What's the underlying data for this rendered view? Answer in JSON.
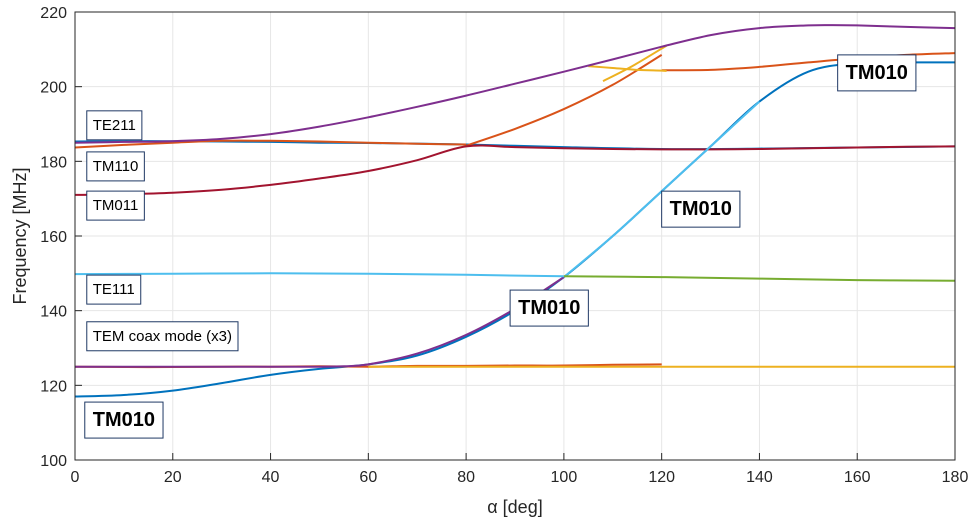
{
  "chart_data": {
    "type": "line",
    "xlabel": "α [deg]",
    "ylabel": "Frequency [MHz]",
    "xlim": [
      0,
      180
    ],
    "ylim": [
      100,
      220
    ],
    "xticks": [
      0,
      20,
      40,
      60,
      80,
      100,
      120,
      140,
      160,
      180
    ],
    "yticks": [
      100,
      120,
      140,
      160,
      180,
      200,
      220
    ],
    "grid": true,
    "series": [
      {
        "color": "#0072BD",
        "x": [
          0,
          10,
          20,
          30,
          40,
          50,
          60,
          80,
          100,
          120,
          140,
          160,
          180
        ],
        "y": [
          185.3,
          185.4,
          185.4,
          185.3,
          185.2,
          185,
          184.9,
          184.5,
          183.8,
          183.3,
          183.4,
          183.7,
          184
        ]
      },
      {
        "color": "#0072BD",
        "x": [
          0,
          10,
          20,
          30,
          40,
          50,
          60,
          70,
          80,
          90,
          100,
          110,
          120,
          130,
          140,
          150,
          160,
          170,
          180
        ],
        "y": [
          117,
          117.4,
          118.6,
          120.6,
          122.8,
          124.4,
          125.6,
          128,
          133,
          140,
          149,
          160,
          172,
          184,
          196,
          204,
          206.3,
          206.5,
          206.5
        ]
      },
      {
        "color": "#D95319",
        "x": [
          0,
          10,
          20,
          30,
          40,
          50,
          60,
          70,
          80
        ],
        "y": [
          183.7,
          184.4,
          185,
          185.5,
          185.5,
          185.3,
          185,
          184.7,
          184.5
        ]
      },
      {
        "color": "#D95319",
        "x": [
          0,
          10,
          20,
          30,
          40,
          50,
          60,
          70,
          80,
          90,
          100,
          110,
          120
        ],
        "y": [
          125,
          124.9,
          124.9,
          125,
          125,
          125.1,
          125,
          125.2,
          125.2,
          125.3,
          125.3,
          125.5,
          125.6
        ]
      },
      {
        "color": "#D95319",
        "x": [
          80,
          90,
          100,
          110,
          120
        ],
        "y": [
          184.2,
          188.7,
          194,
          200.5,
          208.5
        ]
      },
      {
        "color": "#D95319",
        "x": [
          120,
          130,
          140,
          150,
          160,
          170,
          180
        ],
        "y": [
          204.4,
          204.5,
          205.3,
          206.5,
          207.6,
          208.5,
          209
        ]
      },
      {
        "color": "#EDB120",
        "x": [
          60,
          80,
          100,
          120,
          140,
          160,
          180
        ],
        "y": [
          125,
          125,
          125,
          125,
          125,
          125,
          125
        ]
      },
      {
        "color": "#EDB120",
        "x": [
          105,
          110,
          115,
          120,
          121
        ],
        "y": [
          205.5,
          205,
          204.5,
          204.3,
          204.2
        ]
      },
      {
        "color": "#EDB120",
        "x": [
          108,
          114,
          121
        ],
        "y": [
          201.5,
          205.5,
          211
        ]
      },
      {
        "color": "#7E2F8E",
        "x": [
          0,
          10,
          20,
          30,
          40,
          50,
          60,
          70,
          80,
          90,
          100,
          110,
          120,
          130,
          140,
          150,
          155,
          160,
          170,
          180
        ],
        "y": [
          185,
          185.2,
          185.4,
          186,
          187.3,
          189.3,
          191.8,
          194.6,
          197.6,
          200.8,
          204,
          207.3,
          210.7,
          213.8,
          215.7,
          216.4,
          216.5,
          216.4,
          216,
          215.7
        ]
      },
      {
        "color": "#7E2F8E",
        "x": [
          0,
          10,
          20,
          30,
          40,
          50,
          55,
          60,
          70,
          80,
          90,
          100
        ],
        "y": [
          125,
          125,
          125,
          125,
          125,
          125,
          125.1,
          125.6,
          128.5,
          133.5,
          140.5,
          149
        ]
      },
      {
        "color": "#A2142F",
        "x": [
          0,
          10,
          20,
          30,
          40,
          50,
          60,
          70,
          80,
          90,
          100,
          110,
          120,
          130,
          140,
          150,
          160,
          170,
          180
        ],
        "y": [
          171,
          171.2,
          171.6,
          172.4,
          173.7,
          175.4,
          177.4,
          180.3,
          184,
          183.8,
          183.5,
          183.3,
          183.2,
          183.2,
          183.3,
          183.5,
          183.7,
          183.9,
          184
        ]
      },
      {
        "color": "#4DBEEE",
        "x": [
          0,
          20,
          40,
          60,
          80,
          100
        ],
        "y": [
          149.8,
          149.9,
          150,
          149.9,
          149.6,
          149.2
        ]
      },
      {
        "color": "#4DBEEE",
        "x": [
          100,
          110,
          120,
          130,
          140
        ],
        "y": [
          149,
          160,
          172,
          184,
          196
        ]
      },
      {
        "color": "#77AC30",
        "x": [
          100,
          120,
          140,
          160,
          180
        ],
        "y": [
          149.2,
          149,
          148.6,
          148.2,
          148
        ]
      }
    ],
    "annotations": [
      {
        "text": "TE211",
        "x": 2,
        "y": 189.5,
        "bold": false
      },
      {
        "text": "TM110",
        "x": 2,
        "y": 178.5,
        "bold": false
      },
      {
        "text": "TM011",
        "x": 2,
        "y": 168,
        "bold": false
      },
      {
        "text": "TE111",
        "x": 2,
        "y": 145.5,
        "bold": false
      },
      {
        "text": "TEM coax mode (x3)",
        "x": 2,
        "y": 133,
        "bold": false
      },
      {
        "text": "TM010",
        "x": 2,
        "y": 110.5,
        "bold": true
      },
      {
        "text": "TM010",
        "x": 89,
        "y": 140.5,
        "bold": true
      },
      {
        "text": "TM010",
        "x": 120,
        "y": 167,
        "bold": true
      },
      {
        "text": "TM010",
        "x": 156,
        "y": 203.5,
        "bold": true
      }
    ]
  }
}
